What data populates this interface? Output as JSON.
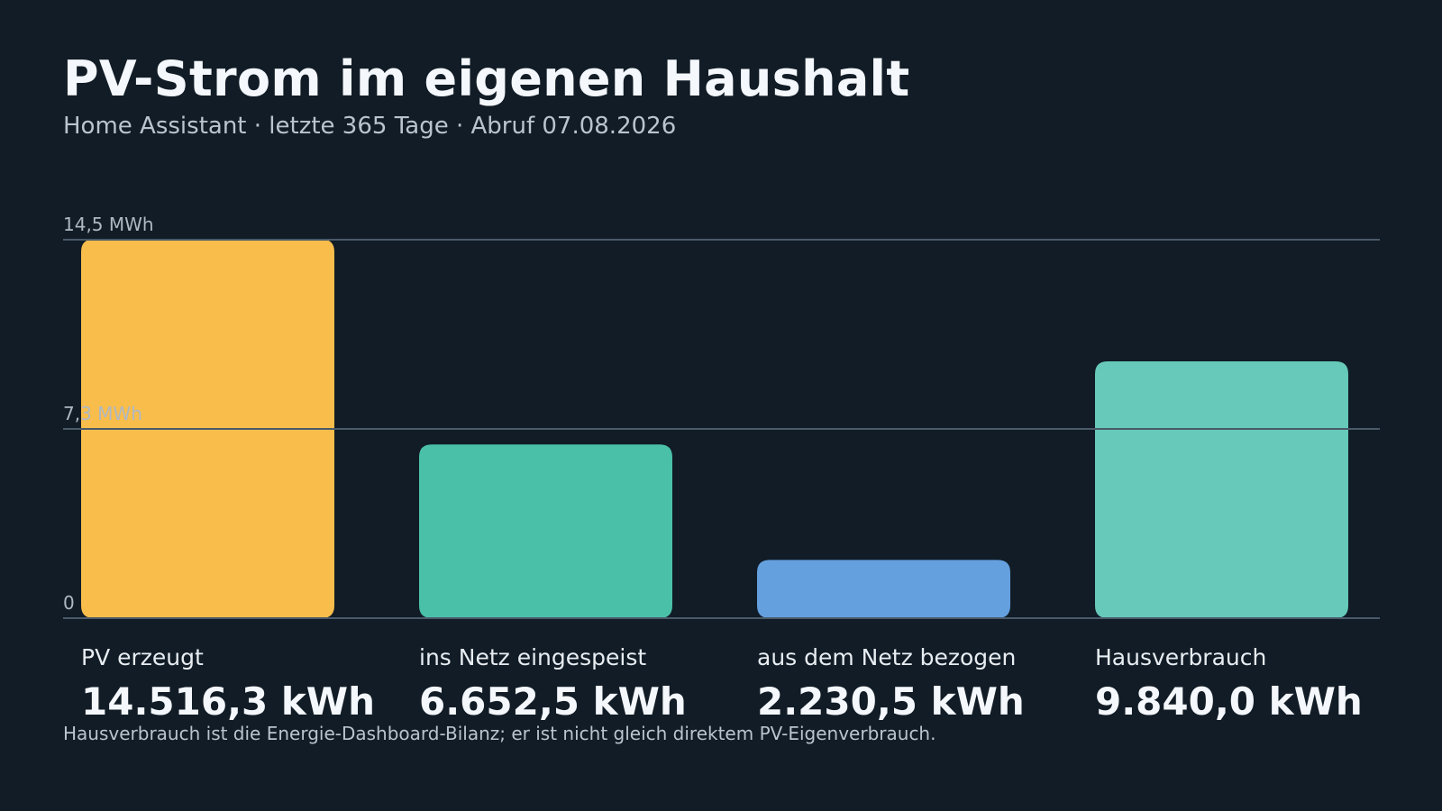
{
  "header": {
    "title": "PV-Strom im eigenen Haushalt",
    "subtitle": "Home Assistant · letzte 365 Tage · Abruf 07.08.2026"
  },
  "footnote": "Hausverbrauch ist die Energie-Dashboard-Bilanz; er ist nicht gleich direktem PV-Eigenverbrauch.",
  "chart_data": {
    "type": "bar",
    "title": "PV-Strom im eigenen Haushalt",
    "subtitle": "Home Assistant · letzte 365 Tage · Abruf 07.08.2026",
    "unit": "kWh",
    "ylim": [
      0,
      14500
    ],
    "grid": true,
    "yticks": [
      {
        "value": 0,
        "label": "0"
      },
      {
        "value": 7250,
        "label": "7,3 MWh"
      },
      {
        "value": 14500,
        "label": "14,5 MWh"
      }
    ],
    "categories": [
      "PV erzeugt",
      "ins Netz eingespeist",
      "aus dem Netz bezogen",
      "Hausverbrauch"
    ],
    "values": [
      14516.3,
      6652.5,
      2230.5,
      9840.0
    ],
    "value_labels": [
      "14.516,3 kWh",
      "6.652,5 kWh",
      "2.230,5 kWh",
      "9.840,0 kWh"
    ],
    "colors": [
      "#f9bd4b",
      "#4bc0a9",
      "#64a0de",
      "#66c9b9"
    ]
  }
}
